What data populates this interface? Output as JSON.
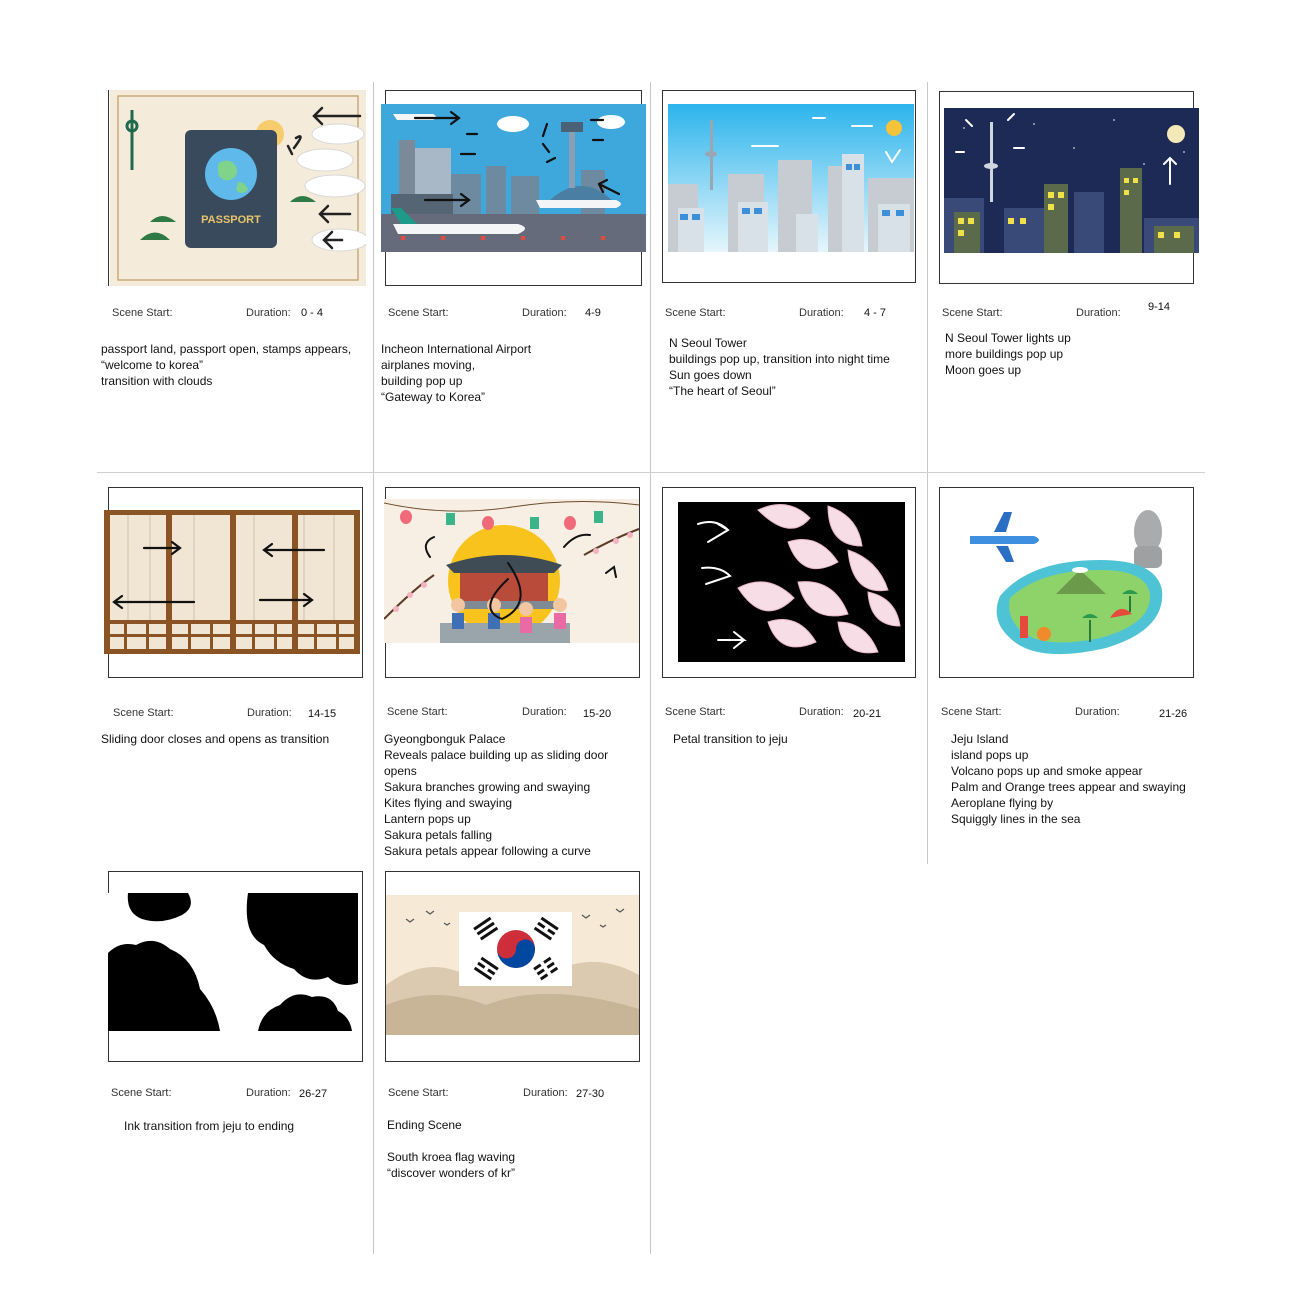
{
  "labels": {
    "scene_start": "Scene Start:",
    "duration": "Duration:"
  },
  "panels": [
    {
      "id": 1,
      "art": "passport",
      "duration": "0 - 4",
      "lines": [
        "passport land,  passport open, stamps appears,",
        "“welcome to korea”",
        "transition with clouds"
      ],
      "passport_text": "PASSPORT"
    },
    {
      "id": 2,
      "art": "airport",
      "duration": "4-9",
      "lines": [
        "Incheon International Airport",
        "airplanes moving,",
        "building pop up",
        "“Gateway to Korea”"
      ]
    },
    {
      "id": 3,
      "art": "seoul-day",
      "duration": "4 - 7",
      "lines": [
        "N Seoul Tower",
        "buildings pop up, transition into night time",
        "Sun goes down",
        "“The heart of Seoul”"
      ]
    },
    {
      "id": 4,
      "art": "seoul-night",
      "duration": "9-14",
      "lines": [
        "N Seoul Tower lights up",
        "more buildings pop up",
        "Moon goes up"
      ]
    },
    {
      "id": 5,
      "art": "sliding-door",
      "duration": "14-15",
      "lines": [
        "Sliding door closes and opens as transition"
      ]
    },
    {
      "id": 6,
      "art": "palace",
      "duration": "15-20",
      "lines": [
        "Gyeongbonguk Palace",
        "Reveals palace building up as sliding door",
        "opens",
        "Sakura branches growing and swaying",
        "Kites flying and swaying",
        "Lantern pops up",
        "Sakura petals falling",
        "Sakura petals appear following a curve"
      ]
    },
    {
      "id": 7,
      "art": "petals",
      "duration": "20-21",
      "lines": [
        "Petal transition to jeju"
      ]
    },
    {
      "id": 8,
      "art": "jeju",
      "duration": "21-26",
      "lines": [
        "Jeju Island",
        "island pops up",
        "Volcano pops up and smoke appear",
        "Palm and Orange trees appear and swaying",
        "Aeroplane flying by",
        "Squiggly lines in the sea"
      ]
    },
    {
      "id": 9,
      "art": "ink",
      "duration": "26-27",
      "lines": [
        "Ink transition from jeju to ending"
      ]
    },
    {
      "id": 10,
      "art": "flag",
      "duration": "27-30",
      "lines": [
        "Ending Scene",
        "",
        "South kroea flag waving",
        "“discover wonders of kr”"
      ]
    }
  ],
  "colors": {
    "frame": "#333333",
    "divider": "#c8c8c8",
    "night_sky": "#1d2a55",
    "day_sky": "#3bb3e6",
    "flag_red": "#cd2e3a",
    "flag_blue": "#0047a0"
  }
}
